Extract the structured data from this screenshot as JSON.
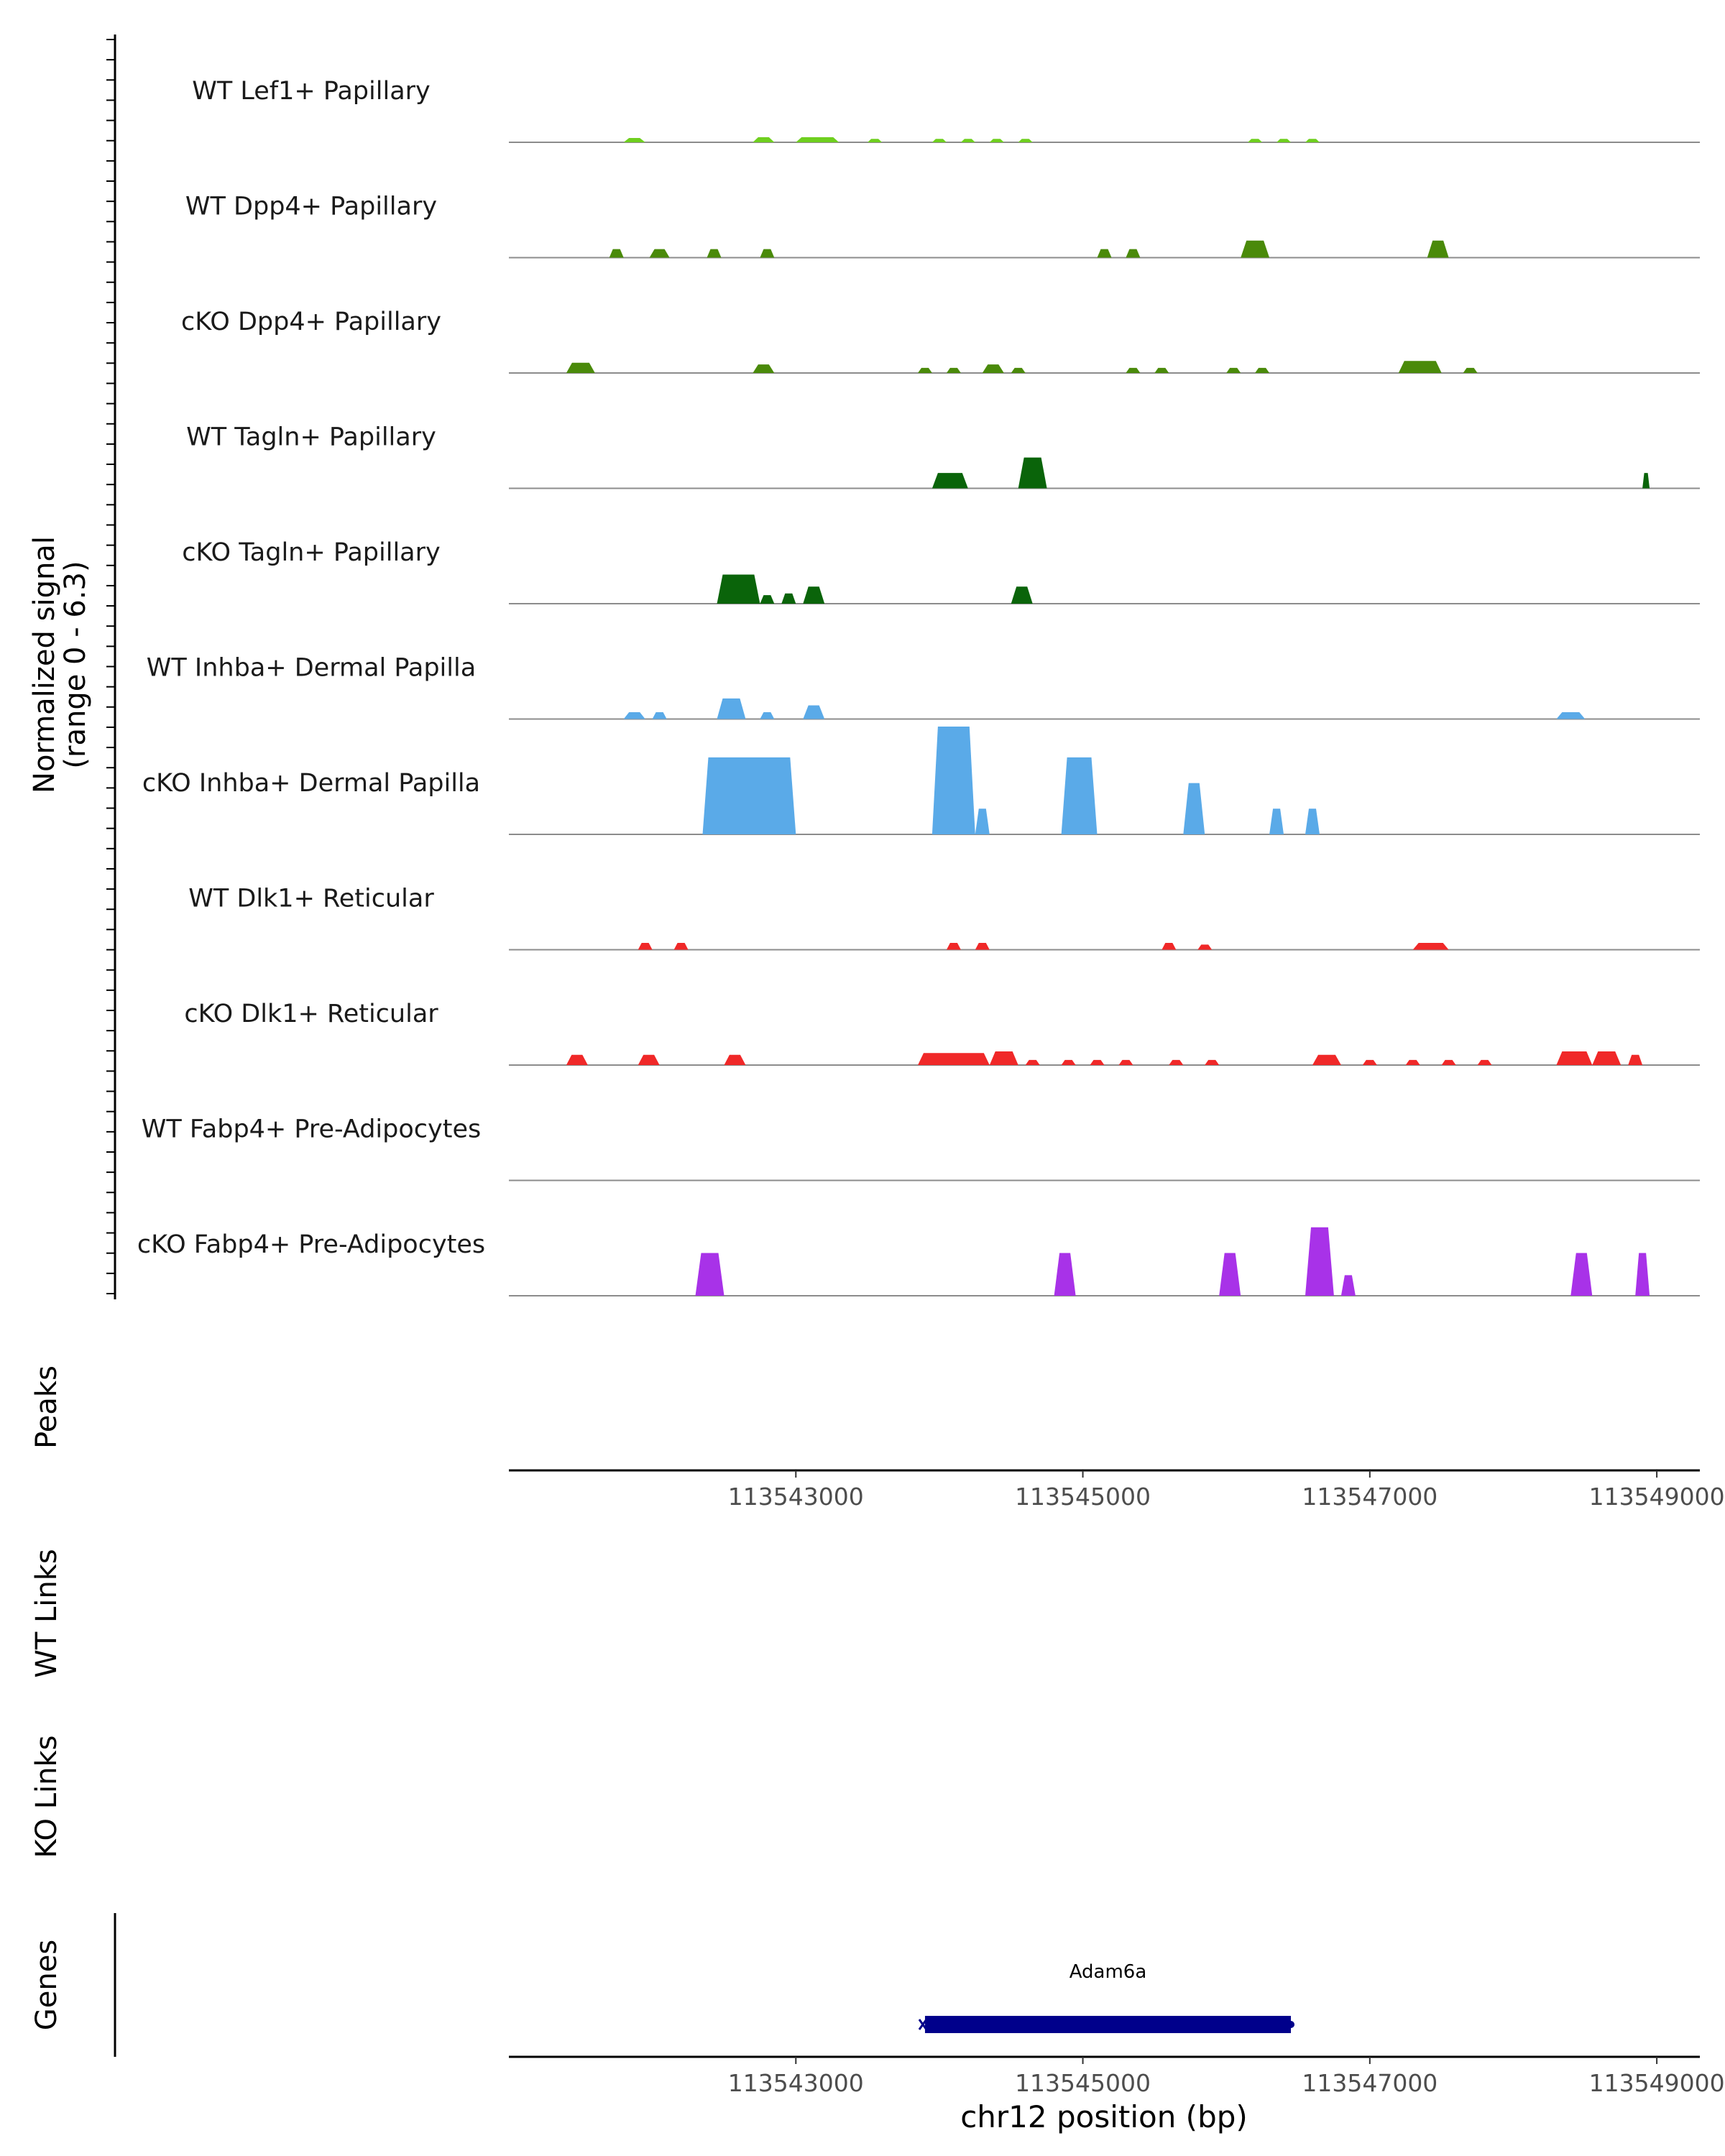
{
  "chart_data": {
    "type": "area",
    "title": "",
    "ylabel": "Normalized signal",
    "ylabel_range": "(range 0 - 6.3)",
    "ylim": [
      0,
      6.3
    ],
    "xlabel": "chr12 position (bp)",
    "xlim": [
      113541000,
      113549300
    ],
    "xticks": [
      113543000,
      113545000,
      113547000,
      113549000
    ],
    "xtick_labels": [
      "113543000",
      "113545000",
      "113547000",
      "113549000"
    ],
    "tracks": [
      {
        "name": "WT Lef1+ Papillary",
        "color": "#6FCF1F",
        "peaks": [
          [
            113541800,
            113541950,
            0.25
          ],
          [
            113542700,
            113542850,
            0.3
          ],
          [
            113543000,
            113543300,
            0.3
          ],
          [
            113543500,
            113543600,
            0.2
          ],
          [
            113543950,
            113544050,
            0.2
          ],
          [
            113544150,
            113544250,
            0.2
          ],
          [
            113544350,
            113544450,
            0.2
          ],
          [
            113544550,
            113544650,
            0.2
          ],
          [
            113546150,
            113546250,
            0.2
          ],
          [
            113546350,
            113546450,
            0.2
          ],
          [
            113546550,
            113546650,
            0.2
          ]
        ]
      },
      {
        "name": "WT Dpp4+ Papillary",
        "color": "#4A8A0A",
        "peaks": [
          [
            113541700,
            113541800,
            0.5
          ],
          [
            113541980,
            113542120,
            0.5
          ],
          [
            113542380,
            113542480,
            0.5
          ],
          [
            113542750,
            113542850,
            0.5
          ],
          [
            113545100,
            113545200,
            0.5
          ],
          [
            113545300,
            113545400,
            0.5
          ],
          [
            113546100,
            113546300,
            1.0
          ],
          [
            113547400,
            113547550,
            1.0
          ]
        ]
      },
      {
        "name": "cKO Dpp4+ Papillary",
        "color": "#4A8A0A",
        "peaks": [
          [
            113541400,
            113541600,
            0.6
          ],
          [
            113542700,
            113542850,
            0.5
          ],
          [
            113543850,
            113543950,
            0.3
          ],
          [
            113544050,
            113544150,
            0.3
          ],
          [
            113544300,
            113544450,
            0.5
          ],
          [
            113544500,
            113544600,
            0.3
          ],
          [
            113545300,
            113545400,
            0.3
          ],
          [
            113545500,
            113545600,
            0.3
          ],
          [
            113546000,
            113546100,
            0.3
          ],
          [
            113546200,
            113546300,
            0.3
          ],
          [
            113547200,
            113547500,
            0.7
          ],
          [
            113547650,
            113547750,
            0.3
          ]
        ]
      },
      {
        "name": "WT Tagln+ Papillary",
        "color": "#0A640A",
        "peaks": [
          [
            113543950,
            113544200,
            0.9
          ],
          [
            113544550,
            113544750,
            1.8
          ],
          [
            113548900,
            113548950,
            0.9
          ]
        ]
      },
      {
        "name": "cKO Tagln+ Papillary",
        "color": "#0A640A",
        "peaks": [
          [
            113542450,
            113542750,
            1.7
          ],
          [
            113542750,
            113542850,
            0.5
          ],
          [
            113542900,
            113543000,
            0.6
          ],
          [
            113543050,
            113543200,
            1.0
          ],
          [
            113544500,
            113544650,
            1.0
          ]
        ]
      },
      {
        "name": "WT Inhba+ Dermal Papilla",
        "color": "#5AAAE8",
        "peaks": [
          [
            113541800,
            113541950,
            0.4
          ],
          [
            113542000,
            113542100,
            0.4
          ],
          [
            113542450,
            113542650,
            1.2
          ],
          [
            113542750,
            113542850,
            0.4
          ],
          [
            113543050,
            113543200,
            0.8
          ],
          [
            113548300,
            113548500,
            0.4
          ]
        ]
      },
      {
        "name": "cKO Inhba+ Dermal Papilla",
        "color": "#5AAAE8",
        "peaks": [
          [
            113542350,
            113543000,
            4.5
          ],
          [
            113543950,
            113544250,
            6.3
          ],
          [
            113544250,
            113544350,
            1.5
          ],
          [
            113544850,
            113545100,
            4.5
          ],
          [
            113545700,
            113545850,
            3.0
          ],
          [
            113546300,
            113546400,
            1.5
          ],
          [
            113546550,
            113546650,
            1.5
          ]
        ]
      },
      {
        "name": "WT Dlk1+ Reticular",
        "color": "#F02828",
        "peaks": [
          [
            113541900,
            113542000,
            0.4
          ],
          [
            113542150,
            113542250,
            0.4
          ],
          [
            113544050,
            113544150,
            0.4
          ],
          [
            113544250,
            113544350,
            0.4
          ],
          [
            113545550,
            113545650,
            0.4
          ],
          [
            113545800,
            113545900,
            0.3
          ],
          [
            113547300,
            113547550,
            0.4
          ]
        ]
      },
      {
        "name": "cKO Dlk1+ Reticular",
        "color": "#F02828",
        "peaks": [
          [
            113541400,
            113541550,
            0.6
          ],
          [
            113541900,
            113542050,
            0.6
          ],
          [
            113542500,
            113542650,
            0.6
          ],
          [
            113543850,
            113544350,
            0.7
          ],
          [
            113544350,
            113544550,
            0.8
          ],
          [
            113544600,
            113544700,
            0.3
          ],
          [
            113544850,
            113544950,
            0.3
          ],
          [
            113545050,
            113545150,
            0.3
          ],
          [
            113545250,
            113545350,
            0.3
          ],
          [
            113545600,
            113545700,
            0.3
          ],
          [
            113545850,
            113545950,
            0.3
          ],
          [
            113546600,
            113546800,
            0.6
          ],
          [
            113546950,
            113547050,
            0.3
          ],
          [
            113547250,
            113547350,
            0.3
          ],
          [
            113547500,
            113547600,
            0.3
          ],
          [
            113547750,
            113547850,
            0.3
          ],
          [
            113548300,
            113548550,
            0.8
          ],
          [
            113548550,
            113548750,
            0.8
          ],
          [
            113548800,
            113548900,
            0.6
          ]
        ]
      },
      {
        "name": "WT Fabp4+ Pre-Adipocytes",
        "color": "#A832E8",
        "peaks": []
      },
      {
        "name": "cKO Fabp4+ Pre-Adipocytes",
        "color": "#A832E8",
        "peaks": [
          [
            113542300,
            113542500,
            2.5
          ],
          [
            113544800,
            113544950,
            2.5
          ],
          [
            113545950,
            113546100,
            2.5
          ],
          [
            113546550,
            113546750,
            4.0
          ],
          [
            113546800,
            113546900,
            1.2
          ],
          [
            113548400,
            113548550,
            2.5
          ],
          [
            113548850,
            113548950,
            2.5
          ]
        ]
      }
    ],
    "lower_panels": [
      {
        "label": "Peaks"
      },
      {
        "label": "WT Links"
      },
      {
        "label": "KO Links"
      },
      {
        "label": "Genes"
      }
    ],
    "genes": [
      {
        "name": "Adam6a",
        "start": 113543900,
        "end": 113546450,
        "strand": "-",
        "color": "#00008B"
      }
    ]
  }
}
